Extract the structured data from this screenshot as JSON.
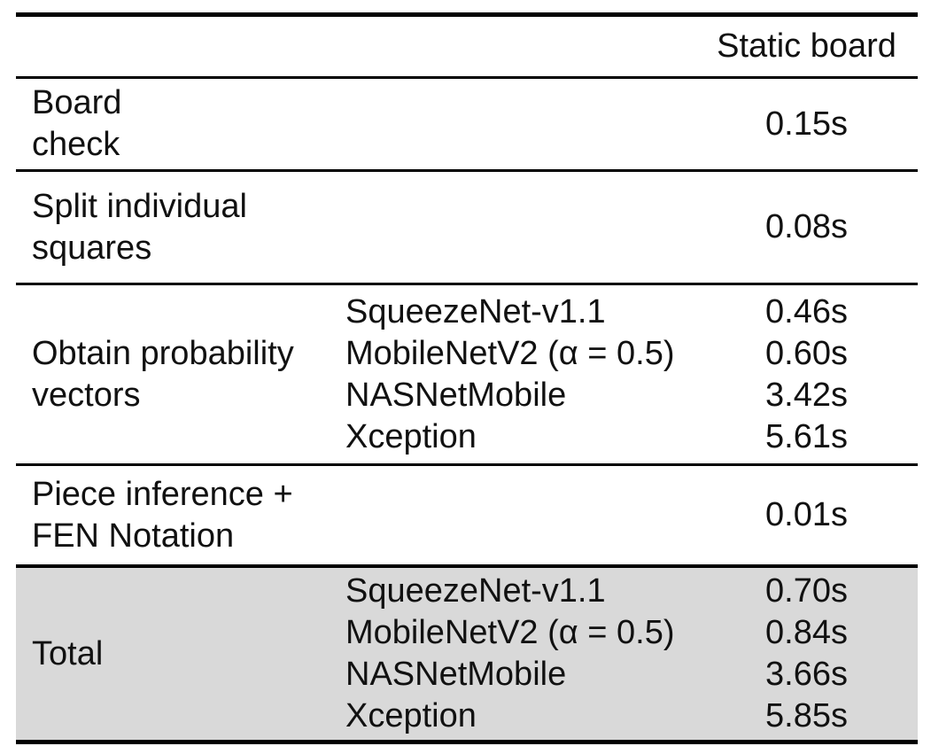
{
  "colors": {
    "highlight_row_bg": "#d9d9d9",
    "rule": "#000000",
    "text": "#111111"
  },
  "header": {
    "static_board": "Static board"
  },
  "rows": [
    {
      "stage_lines": [
        "Board",
        "check"
      ],
      "values": [
        "0.15s"
      ]
    },
    {
      "stage_lines": [
        "Split individual",
        "squares"
      ],
      "values": [
        "0.08s"
      ]
    },
    {
      "stage_lines": [
        "Obtain probability",
        "vectors"
      ],
      "models": [
        "SqueezeNet-v1.1",
        "MobileNetV2 (α = 0.5)",
        "NASNetMobile",
        "Xception"
      ],
      "values": [
        "0.46s",
        "0.60s",
        "3.42s",
        "5.61s"
      ]
    },
    {
      "stage_lines": [
        "Piece inference +",
        "FEN Notation"
      ],
      "values": [
        "0.01s"
      ]
    },
    {
      "stage_lines": [
        "Total"
      ],
      "models": [
        "SqueezeNet-v1.1",
        "MobileNetV2 (α = 0.5)",
        "NASNetMobile",
        "Xception"
      ],
      "values": [
        "0.70s",
        "0.84s",
        "3.66s",
        "5.85s"
      ],
      "highlighted": true
    }
  ]
}
